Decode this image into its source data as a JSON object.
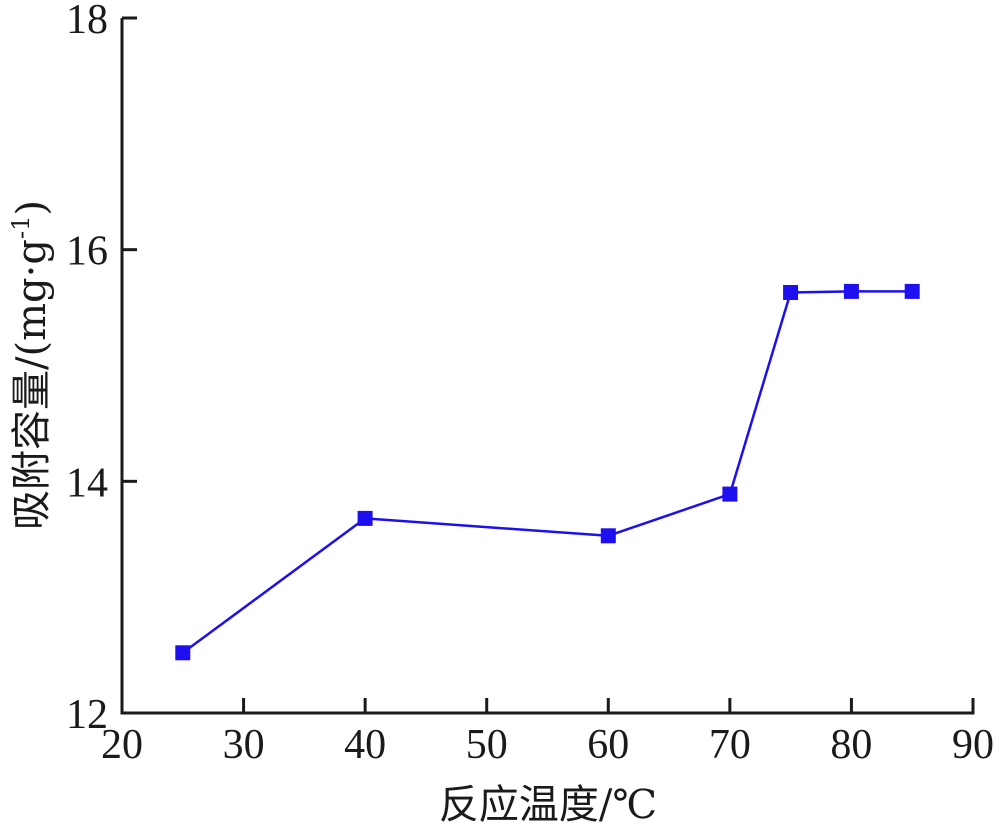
{
  "chart_data": {
    "type": "line",
    "title": "",
    "xlabel": "反应温度/℃",
    "ylabel": "吸附容量/(mg·g",
    "ylabel_sup": "-1",
    "ylabel_close": ")",
    "xlim": [
      20,
      90
    ],
    "ylim": [
      12,
      18
    ],
    "x_ticks": [
      20,
      30,
      40,
      50,
      60,
      70,
      80,
      90
    ],
    "y_ticks": [
      12,
      14,
      16,
      18
    ],
    "grid": false,
    "series": [
      {
        "color": "#1e0ff0",
        "marker": "square",
        "x": [
          25,
          40,
          60,
          70,
          75,
          80,
          85
        ],
        "y": [
          12.52,
          13.68,
          13.53,
          13.89,
          15.63,
          15.64,
          15.64
        ]
      }
    ]
  }
}
